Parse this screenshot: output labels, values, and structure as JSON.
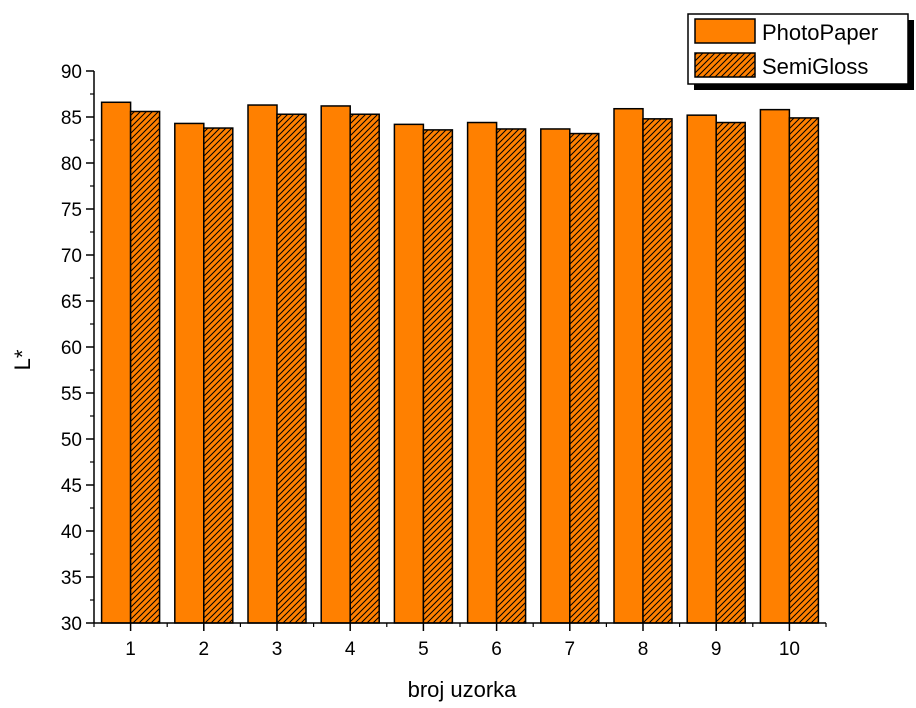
{
  "chart_data": {
    "type": "bar",
    "xlabel": "broj uzorka",
    "ylabel": "L*",
    "categories": [
      "1",
      "2",
      "3",
      "4",
      "5",
      "6",
      "7",
      "8",
      "9",
      "10"
    ],
    "ylim": [
      30,
      90
    ],
    "yticks": [
      "30",
      "35",
      "40",
      "45",
      "50",
      "55",
      "60",
      "65",
      "70",
      "75",
      "80",
      "85",
      "90"
    ],
    "grid": false,
    "legend_position": "top-right",
    "series": [
      {
        "name": "PhotoPaper",
        "pattern": "solid",
        "color": "#ff8000",
        "values": [
          86.6,
          84.3,
          86.3,
          86.2,
          84.2,
          84.4,
          83.7,
          85.9,
          85.2,
          85.8
        ]
      },
      {
        "name": "SemiGloss",
        "pattern": "hatched",
        "color": "#ff8000",
        "values": [
          85.6,
          83.8,
          85.3,
          85.3,
          83.6,
          83.7,
          83.2,
          84.8,
          84.4,
          84.9
        ]
      }
    ]
  }
}
